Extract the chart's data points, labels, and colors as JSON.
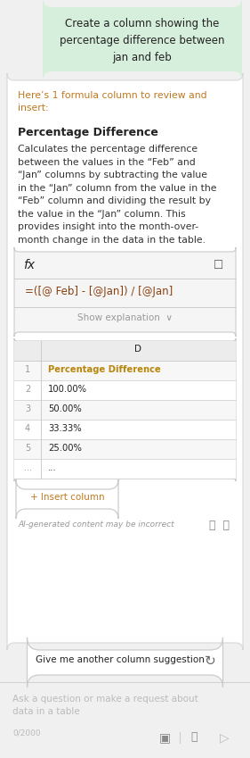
{
  "bg_color": "#f0f0f0",
  "user_bubble_color": "#d6eedc",
  "user_bubble_text": "Create a column showing the\npercentage difference between\njan and feb",
  "response_header": "Here’s 1 formula column to review and\ninsert:",
  "response_header_color": "#c07820",
  "section_title": "Percentage Difference",
  "desc_lines": [
    "Calculates the percentage difference",
    "between the values in the “Feb” and",
    "“Jan” columns by subtracting the value",
    "in the “Jan” column from the value in the",
    "“Feb” column and dividing the result by",
    "the value in the “Jan” column. This",
    "provides insight into the month-over-",
    "month change in the data in the table."
  ],
  "formula_label": "fx",
  "formula_text": "=([@ Feb]  -  [@Jan]) / [@Jan]",
  "formula_text2": "=([@ Feb] - [@Jan]) / [@Jan]",
  "show_explanation": "Show explanation",
  "col_header": "D",
  "table_rows": [
    [
      "1",
      "Percentage Difference",
      true
    ],
    [
      "2",
      "100.00%",
      false
    ],
    [
      "3",
      "50.00%",
      false
    ],
    [
      "4",
      "33.33%",
      false
    ],
    [
      "5",
      "25.00%",
      false
    ],
    [
      "...",
      "...",
      false
    ]
  ],
  "insert_btn_text": "+ Insert column",
  "ai_note": "AI-generated content may be incorrect",
  "suggest_btn_text": "Give me another column suggestion",
  "input_placeholder_line1": "Ask a question or make a request about",
  "input_placeholder_line2": "data in a table",
  "char_count": "0/2000",
  "text_color_main": "#222222",
  "text_color_desc": "#333333",
  "text_color_muted": "#999999",
  "text_color_formula": "#8b4010",
  "text_color_header": "#c07820",
  "accent_orange": "#c07820",
  "row1_color": "#b8860b",
  "border_color": "#cccccc",
  "card_border": "#d8d8d8",
  "table_header_bg": "#ececec",
  "formula_bg": "#f5f5f5",
  "white": "#ffffff"
}
